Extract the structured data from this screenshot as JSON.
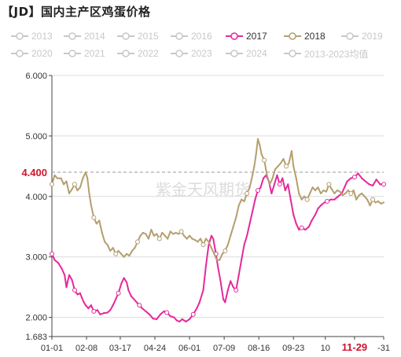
{
  "title": "【JD】国内主产区鸡蛋价格",
  "watermark": "紫金天风期货",
  "colors": {
    "inactive": "#c8c8c8",
    "axis": "#444444",
    "grid": "#dcdcdc",
    "highlight": "#d0142c",
    "marker_fill": "#ffffff"
  },
  "legend": [
    {
      "label": "2013",
      "color": "#c8c8c8",
      "active": false
    },
    {
      "label": "2014",
      "color": "#c8c8c8",
      "active": false
    },
    {
      "label": "2015",
      "color": "#c8c8c8",
      "active": false
    },
    {
      "label": "2016",
      "color": "#c8c8c8",
      "active": false
    },
    {
      "label": "2017",
      "color": "#e4299c",
      "active": true
    },
    {
      "label": "2018",
      "color": "#b49f6e",
      "active": true
    },
    {
      "label": "2019",
      "color": "#c8c8c8",
      "active": false
    },
    {
      "label": "2020",
      "color": "#c8c8c8",
      "active": false
    },
    {
      "label": "2021",
      "color": "#c8c8c8",
      "active": false
    },
    {
      "label": "2022",
      "color": "#c8c8c8",
      "active": false
    },
    {
      "label": "2023",
      "color": "#c8c8c8",
      "active": false
    },
    {
      "label": "2024",
      "color": "#c8c8c8",
      "active": false
    },
    {
      "label": "2013-2023均值",
      "color": "#c8c8c8",
      "active": false
    }
  ],
  "chart_data": {
    "type": "line",
    "title": "【JD】国内主产区鸡蛋价格",
    "xlabel": "",
    "ylabel": "",
    "x_tick_labels": [
      "01-01",
      "02-08",
      "03-17",
      "04-24",
      "06-01",
      "07-09",
      "08-16",
      "09-23",
      "10",
      "11-29",
      "-31"
    ],
    "x_tick_days": [
      0,
      38,
      75,
      113,
      151,
      189,
      227,
      265,
      300,
      332,
      364
    ],
    "highlighted_x_tick": "11-29",
    "xlim_days": [
      0,
      364
    ],
    "y_ticks": [
      "1.683",
      "2.000",
      "3.000",
      "4.000",
      "5.000",
      "6.000"
    ],
    "ylim": [
      1.683,
      6.0
    ],
    "grid": "horizontal",
    "legend_position": "top",
    "crosshair": {
      "y_value": 4.4,
      "label": "4.400",
      "x_day": 332
    },
    "series": [
      {
        "name": "2017",
        "color": "#e4299c",
        "points": [
          [
            0,
            3.05
          ],
          [
            3,
            2.95
          ],
          [
            7,
            2.9
          ],
          [
            11,
            2.8
          ],
          [
            14,
            2.7
          ],
          [
            16,
            2.5
          ],
          [
            19,
            2.7
          ],
          [
            22,
            2.62
          ],
          [
            25,
            2.45
          ],
          [
            28,
            2.38
          ],
          [
            31,
            2.4
          ],
          [
            33,
            2.32
          ],
          [
            35,
            2.25
          ],
          [
            37,
            2.2
          ],
          [
            40,
            2.15
          ],
          [
            43,
            2.2
          ],
          [
            46,
            2.1
          ],
          [
            50,
            2.12
          ],
          [
            53,
            2.05
          ],
          [
            57,
            2.07
          ],
          [
            61,
            2.08
          ],
          [
            64,
            2.12
          ],
          [
            67,
            2.2
          ],
          [
            70,
            2.3
          ],
          [
            73,
            2.4
          ],
          [
            76,
            2.55
          ],
          [
            79,
            2.65
          ],
          [
            82,
            2.58
          ],
          [
            84,
            2.45
          ],
          [
            87,
            2.35
          ],
          [
            90,
            2.3
          ],
          [
            93,
            2.25
          ],
          [
            96,
            2.2
          ],
          [
            99,
            2.15
          ],
          [
            103,
            2.1
          ],
          [
            107,
            2.05
          ],
          [
            111,
            1.98
          ],
          [
            115,
            1.97
          ],
          [
            119,
            2.05
          ],
          [
            123,
            2.1
          ],
          [
            126,
            2.08
          ],
          [
            130,
            2.02
          ],
          [
            134,
            2.0
          ],
          [
            137,
            1.95
          ],
          [
            140,
            1.93
          ],
          [
            143,
            1.97
          ],
          [
            147,
            1.93
          ],
          [
            151,
            1.97
          ],
          [
            155,
            2.05
          ],
          [
            159,
            2.15
          ],
          [
            162,
            2.25
          ],
          [
            166,
            2.45
          ],
          [
            169,
            2.85
          ],
          [
            172,
            3.2
          ],
          [
            175,
            3.35
          ],
          [
            177,
            3.3
          ],
          [
            180,
            3.05
          ],
          [
            182,
            2.85
          ],
          [
            185,
            2.6
          ],
          [
            188,
            2.3
          ],
          [
            190,
            2.25
          ],
          [
            193,
            2.45
          ],
          [
            196,
            2.6
          ],
          [
            199,
            2.5
          ],
          [
            202,
            2.45
          ],
          [
            205,
            2.7
          ],
          [
            208,
            2.95
          ],
          [
            211,
            3.2
          ],
          [
            214,
            3.35
          ],
          [
            217,
            3.55
          ],
          [
            220,
            3.75
          ],
          [
            223,
            3.95
          ],
          [
            226,
            4.1
          ],
          [
            229,
            4.15
          ],
          [
            232,
            4.3
          ],
          [
            235,
            4.35
          ],
          [
            238,
            4.25
          ],
          [
            241,
            4.05
          ],
          [
            244,
            4.2
          ],
          [
            247,
            4.35
          ],
          [
            250,
            4.2
          ],
          [
            253,
            4.3
          ],
          [
            256,
            4.1
          ],
          [
            259,
            4.2
          ],
          [
            262,
            3.95
          ],
          [
            265,
            3.7
          ],
          [
            268,
            3.55
          ],
          [
            271,
            3.45
          ],
          [
            274,
            3.48
          ],
          [
            278,
            3.45
          ],
          [
            282,
            3.5
          ],
          [
            285,
            3.6
          ],
          [
            289,
            3.7
          ],
          [
            292,
            3.8
          ],
          [
            295,
            3.85
          ],
          [
            299,
            3.9
          ],
          [
            302,
            3.92
          ],
          [
            306,
            3.95
          ],
          [
            310,
            3.95
          ],
          [
            314,
            4.0
          ],
          [
            318,
            4.05
          ],
          [
            321,
            4.15
          ],
          [
            324,
            4.25
          ],
          [
            328,
            4.3
          ],
          [
            332,
            4.32
          ],
          [
            336,
            4.38
          ],
          [
            340,
            4.3
          ],
          [
            344,
            4.25
          ],
          [
            348,
            4.2
          ],
          [
            352,
            4.18
          ],
          [
            356,
            4.28
          ],
          [
            360,
            4.2
          ],
          [
            364,
            4.2
          ]
        ]
      },
      {
        "name": "2018",
        "color": "#b49f6e",
        "points": [
          [
            0,
            4.2
          ],
          [
            3,
            4.35
          ],
          [
            6,
            4.3
          ],
          [
            10,
            4.3
          ],
          [
            13,
            4.2
          ],
          [
            16,
            4.25
          ],
          [
            19,
            4.05
          ],
          [
            22,
            4.12
          ],
          [
            25,
            4.2
          ],
          [
            28,
            4.1
          ],
          [
            31,
            4.15
          ],
          [
            34,
            4.3
          ],
          [
            37,
            4.4
          ],
          [
            39,
            4.3
          ],
          [
            41,
            4.05
          ],
          [
            43,
            3.85
          ],
          [
            46,
            3.65
          ],
          [
            49,
            3.55
          ],
          [
            52,
            3.6
          ],
          [
            55,
            3.4
          ],
          [
            58,
            3.25
          ],
          [
            61,
            3.2
          ],
          [
            64,
            3.1
          ],
          [
            67,
            3.15
          ],
          [
            70,
            3.05
          ],
          [
            73,
            3.1
          ],
          [
            76,
            3.05
          ],
          [
            79,
            3.0
          ],
          [
            82,
            3.05
          ],
          [
            85,
            3.02
          ],
          [
            88,
            3.1
          ],
          [
            91,
            3.15
          ],
          [
            94,
            3.25
          ],
          [
            97,
            3.35
          ],
          [
            100,
            3.4
          ],
          [
            103,
            3.38
          ],
          [
            106,
            3.3
          ],
          [
            109,
            3.45
          ],
          [
            112,
            3.35
          ],
          [
            115,
            3.38
          ],
          [
            118,
            3.3
          ],
          [
            121,
            3.4
          ],
          [
            124,
            3.35
          ],
          [
            127,
            3.3
          ],
          [
            130,
            3.42
          ],
          [
            133,
            3.38
          ],
          [
            136,
            3.4
          ],
          [
            139,
            3.38
          ],
          [
            142,
            3.42
          ],
          [
            145,
            3.35
          ],
          [
            148,
            3.3
          ],
          [
            151,
            3.35
          ],
          [
            154,
            3.3
          ],
          [
            157,
            3.28
          ],
          [
            160,
            3.25
          ],
          [
            163,
            3.3
          ],
          [
            166,
            3.2
          ],
          [
            169,
            3.3
          ],
          [
            172,
            3.25
          ],
          [
            175,
            3.15
          ],
          [
            178,
            3.05
          ],
          [
            181,
            2.95
          ],
          [
            184,
            2.95
          ],
          [
            187,
            3.05
          ],
          [
            190,
            3.1
          ],
          [
            193,
            3.2
          ],
          [
            196,
            3.35
          ],
          [
            199,
            3.5
          ],
          [
            202,
            3.65
          ],
          [
            205,
            3.85
          ],
          [
            208,
            3.95
          ],
          [
            211,
            3.92
          ],
          [
            214,
            4.05
          ],
          [
            217,
            4.15
          ],
          [
            220,
            4.35
          ],
          [
            222,
            4.5
          ],
          [
            224,
            4.7
          ],
          [
            226,
            4.95
          ],
          [
            228,
            4.85
          ],
          [
            230,
            4.7
          ],
          [
            233,
            4.6
          ],
          [
            236,
            4.35
          ],
          [
            239,
            4.2
          ],
          [
            242,
            4.3
          ],
          [
            245,
            4.45
          ],
          [
            248,
            4.5
          ],
          [
            251,
            4.55
          ],
          [
            254,
            4.62
          ],
          [
            257,
            4.5
          ],
          [
            260,
            4.55
          ],
          [
            263,
            4.75
          ],
          [
            265,
            4.5
          ],
          [
            268,
            4.3
          ],
          [
            271,
            4.05
          ],
          [
            274,
            3.95
          ],
          [
            277,
            4.0
          ],
          [
            280,
            3.95
          ],
          [
            283,
            4.05
          ],
          [
            286,
            4.15
          ],
          [
            289,
            4.1
          ],
          [
            292,
            4.15
          ],
          [
            295,
            4.05
          ],
          [
            298,
            4.1
          ],
          [
            301,
            4.08
          ],
          [
            304,
            4.2
          ],
          [
            307,
            4.12
          ],
          [
            310,
            4.05
          ],
          [
            313,
            4.1
          ],
          [
            316,
            4.08
          ],
          [
            319,
            4.02
          ],
          [
            322,
            4.05
          ],
          [
            325,
            4.1
          ],
          [
            328,
            4.05
          ],
          [
            331,
            4.1
          ],
          [
            334,
            3.95
          ],
          [
            337,
            4.02
          ],
          [
            340,
            4.05
          ],
          [
            343,
            4.0
          ],
          [
            346,
            3.95
          ],
          [
            349,
            3.85
          ],
          [
            352,
            3.95
          ],
          [
            355,
            3.9
          ],
          [
            358,
            3.92
          ],
          [
            361,
            3.88
          ],
          [
            364,
            3.9
          ]
        ]
      }
    ]
  }
}
